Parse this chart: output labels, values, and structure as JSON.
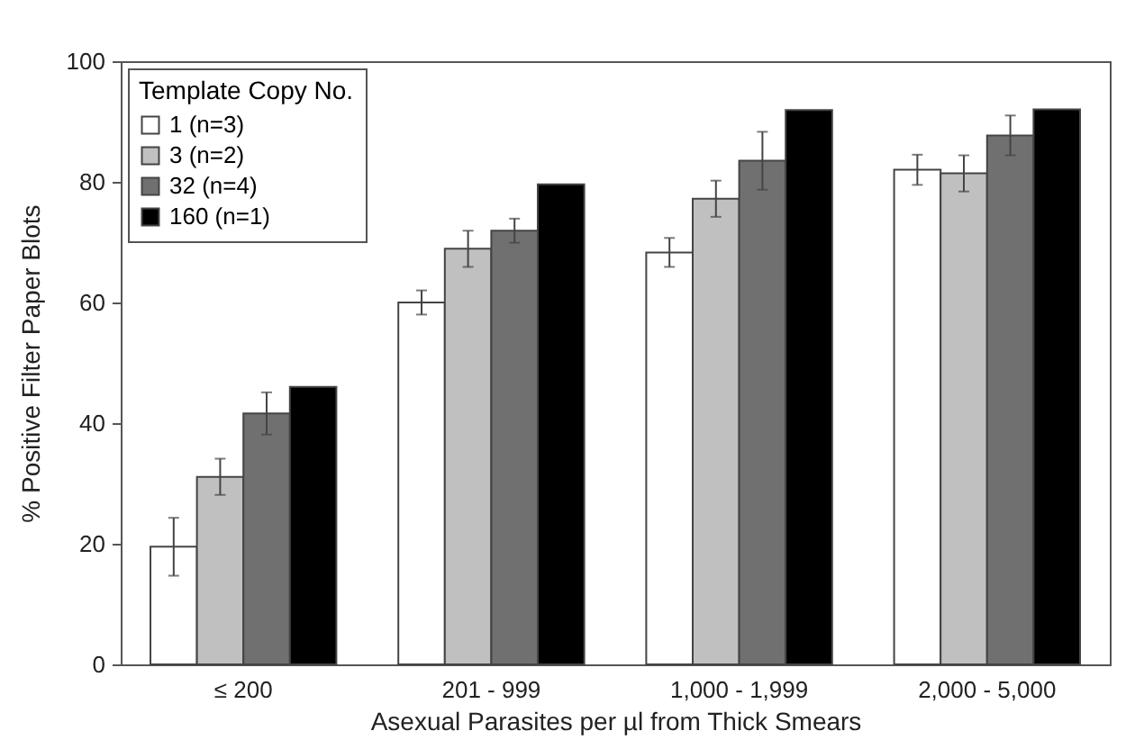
{
  "chart_data": {
    "type": "bar",
    "xlabel": "Asexual Parasites per µl from Thick Smears",
    "ylabel": "% Positive Filter Paper Blots",
    "categories": [
      "≤ 200",
      "201 - 999",
      "1,000 - 1,999",
      "2,000 - 5,000"
    ],
    "legend_title": "Template Copy No.",
    "legend": "top left",
    "series": [
      {
        "name": "1 (n=3)",
        "color": "#ffffff",
        "values": [
          19.5,
          60,
          68.3,
          82
        ],
        "errors": [
          4.8,
          2,
          2.4,
          2.5
        ]
      },
      {
        "name": "3 (n=2)",
        "color": "#c0c0c0",
        "values": [
          31.1,
          68.9,
          77.2,
          81.4
        ],
        "errors": [
          3,
          3,
          3,
          3
        ]
      },
      {
        "name": "32 (n=4)",
        "color": "#707070",
        "values": [
          41.6,
          71.9,
          83.5,
          87.7
        ],
        "errors": [
          3.5,
          2,
          4.8,
          3.3
        ]
      },
      {
        "name": "160 (n=1)",
        "color": "#000000",
        "values": [
          46,
          79.6,
          91.9,
          92
        ]
      }
    ],
    "ylim": [
      0,
      100
    ],
    "yticks": [
      0,
      20,
      40,
      60,
      80,
      100
    ],
    "grid": false
  }
}
